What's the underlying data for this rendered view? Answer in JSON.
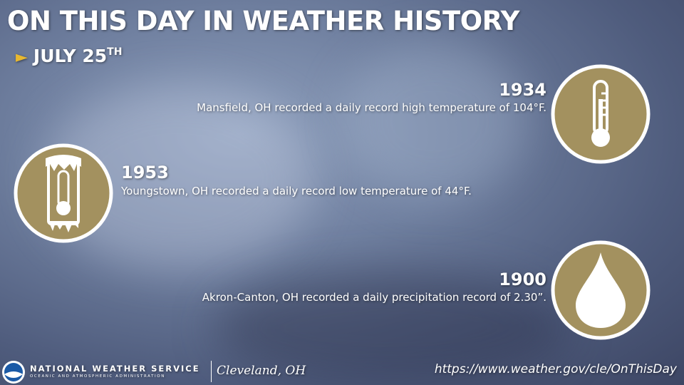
{
  "header": {
    "title": "ON THIS DAY IN WEATHER HISTORY",
    "date": "JULY 25",
    "date_suffix": "TH"
  },
  "events": [
    {
      "year": "1934",
      "text": "Mansfield, OH recorded a daily record high temperature of 104°F."
    },
    {
      "year": "1953",
      "text": "Youngstown, OH recorded a daily record low temperature of 44°F."
    },
    {
      "year": "1900",
      "text": "Akron-Canton, OH recorded a daily precipitation record of 2.30”."
    }
  ],
  "footer": {
    "org": "NATIONAL WEATHER SERVICE",
    "org_sub": "OCEANIC AND ATMOSPHERIC ADMINISTRATION",
    "office": "Cleveland, OH",
    "url": "https://www.weather.gov/cle/OnThisDay"
  }
}
